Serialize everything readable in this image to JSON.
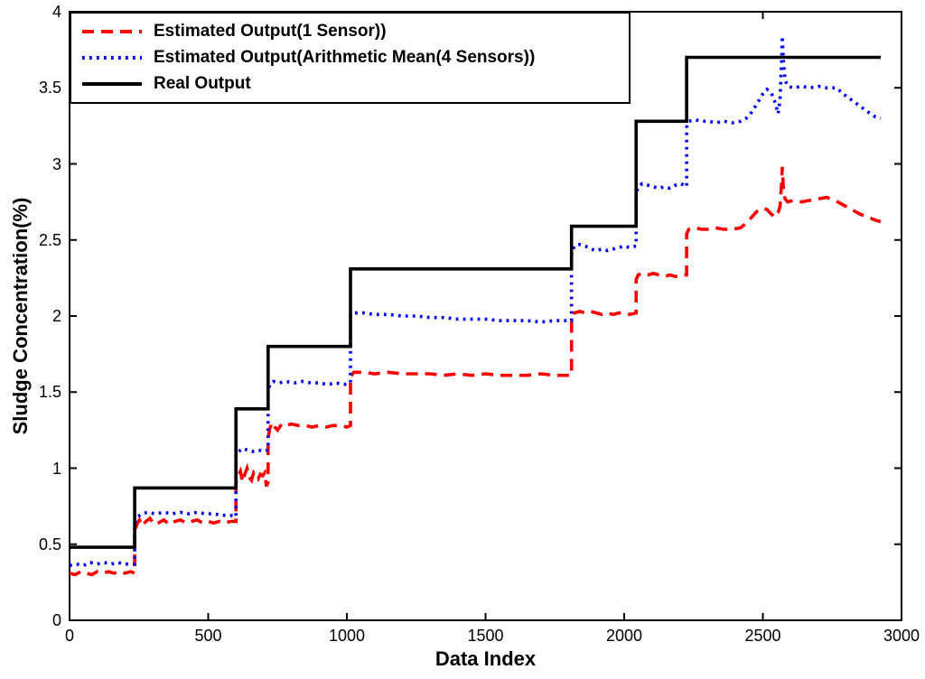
{
  "figure": {
    "background": "#ffffff",
    "axis_color": "#000000"
  },
  "chart_data": {
    "type": "line",
    "title": "",
    "xlabel": "Data Index",
    "ylabel": "Sludge Concentration(%)",
    "xlim": [
      0,
      3000
    ],
    "ylim": [
      0,
      4
    ],
    "grid": false,
    "legend_position": "top-left",
    "xticks": [
      0,
      500,
      1000,
      1500,
      2000,
      2500,
      3000
    ],
    "xtick_labels": [
      "0",
      "500",
      "1000",
      "1500",
      "2000",
      "2500",
      "3000"
    ],
    "yticks": [
      0,
      0.5,
      1,
      1.5,
      2,
      2.5,
      3,
      3.5,
      4
    ],
    "ytick_labels": [
      "0",
      "0.5",
      "1",
      "1.5",
      "2",
      "2.5",
      "3",
      "3.5",
      "4"
    ],
    "series": [
      {
        "name": "Estimated Output(1 Sensor))",
        "color": "#ff0000",
        "style": "dashed",
        "points": [
          [
            0,
            0.31
          ],
          [
            20,
            0.3
          ],
          [
            40,
            0.32
          ],
          [
            60,
            0.31
          ],
          [
            80,
            0.3
          ],
          [
            100,
            0.32
          ],
          [
            120,
            0.31
          ],
          [
            140,
            0.32
          ],
          [
            160,
            0.31
          ],
          [
            180,
            0.32
          ],
          [
            200,
            0.31
          ],
          [
            220,
            0.32
          ],
          [
            235,
            0.31
          ],
          [
            235,
            0.58
          ],
          [
            243,
            0.63
          ],
          [
            252,
            0.66
          ],
          [
            262,
            0.62
          ],
          [
            275,
            0.65
          ],
          [
            290,
            0.67
          ],
          [
            305,
            0.63
          ],
          [
            320,
            0.64
          ],
          [
            340,
            0.66
          ],
          [
            360,
            0.63
          ],
          [
            380,
            0.65
          ],
          [
            400,
            0.66
          ],
          [
            420,
            0.64
          ],
          [
            440,
            0.65
          ],
          [
            460,
            0.66
          ],
          [
            480,
            0.64
          ],
          [
            500,
            0.65
          ],
          [
            520,
            0.64
          ],
          [
            540,
            0.65
          ],
          [
            560,
            0.64
          ],
          [
            580,
            0.65
          ],
          [
            600,
            0.65
          ],
          [
            600,
            0.9
          ],
          [
            608,
            0.95
          ],
          [
            616,
            0.98
          ],
          [
            624,
            0.91
          ],
          [
            632,
            0.96
          ],
          [
            640,
            1.0
          ],
          [
            648,
            0.94
          ],
          [
            656,
            0.92
          ],
          [
            664,
            0.97
          ],
          [
            672,
            0.95
          ],
          [
            680,
            0.93
          ],
          [
            688,
            0.96
          ],
          [
            696,
            0.95
          ],
          [
            704,
            0.97
          ],
          [
            710,
            0.88
          ],
          [
            716,
            0.91
          ],
          [
            716,
            1.2
          ],
          [
            722,
            1.26
          ],
          [
            730,
            1.3
          ],
          [
            740,
            1.27
          ],
          [
            750,
            1.25
          ],
          [
            765,
            1.29
          ],
          [
            780,
            1.28
          ],
          [
            800,
            1.29
          ],
          [
            825,
            1.28
          ],
          [
            850,
            1.28
          ],
          [
            875,
            1.27
          ],
          [
            900,
            1.28
          ],
          [
            925,
            1.27
          ],
          [
            950,
            1.28
          ],
          [
            975,
            1.28
          ],
          [
            1000,
            1.27
          ],
          [
            1013,
            1.28
          ],
          [
            1013,
            1.6
          ],
          [
            1025,
            1.63
          ],
          [
            1060,
            1.63
          ],
          [
            1100,
            1.62
          ],
          [
            1150,
            1.63
          ],
          [
            1200,
            1.62
          ],
          [
            1250,
            1.62
          ],
          [
            1300,
            1.62
          ],
          [
            1350,
            1.61
          ],
          [
            1400,
            1.62
          ],
          [
            1450,
            1.61
          ],
          [
            1500,
            1.62
          ],
          [
            1550,
            1.61
          ],
          [
            1600,
            1.61
          ],
          [
            1650,
            1.61
          ],
          [
            1700,
            1.62
          ],
          [
            1750,
            1.61
          ],
          [
            1810,
            1.61
          ],
          [
            1810,
            1.98
          ],
          [
            1820,
            2.02
          ],
          [
            1840,
            2.03
          ],
          [
            1860,
            2.02
          ],
          [
            1880,
            2.03
          ],
          [
            1900,
            2.02
          ],
          [
            1920,
            2.01
          ],
          [
            1940,
            2.02
          ],
          [
            1960,
            2.01
          ],
          [
            1980,
            2.02
          ],
          [
            2000,
            2.02
          ],
          [
            2020,
            2.01
          ],
          [
            2043,
            2.02
          ],
          [
            2043,
            2.24
          ],
          [
            2050,
            2.27
          ],
          [
            2065,
            2.28
          ],
          [
            2085,
            2.27
          ],
          [
            2105,
            2.28
          ],
          [
            2125,
            2.27
          ],
          [
            2145,
            2.26
          ],
          [
            2165,
            2.27
          ],
          [
            2185,
            2.26
          ],
          [
            2205,
            2.27
          ],
          [
            2225,
            2.27
          ],
          [
            2225,
            2.54
          ],
          [
            2233,
            2.57
          ],
          [
            2255,
            2.58
          ],
          [
            2280,
            2.57
          ],
          [
            2305,
            2.57
          ],
          [
            2330,
            2.58
          ],
          [
            2360,
            2.57
          ],
          [
            2390,
            2.57
          ],
          [
            2420,
            2.58
          ],
          [
            2440,
            2.61
          ],
          [
            2460,
            2.65
          ],
          [
            2480,
            2.69
          ],
          [
            2500,
            2.71
          ],
          [
            2515,
            2.7
          ],
          [
            2530,
            2.67
          ],
          [
            2545,
            2.65
          ],
          [
            2555,
            2.68
          ],
          [
            2562,
            2.72
          ],
          [
            2567,
            2.86
          ],
          [
            2570,
            2.98
          ],
          [
            2574,
            2.84
          ],
          [
            2580,
            2.77
          ],
          [
            2590,
            2.75
          ],
          [
            2610,
            2.76
          ],
          [
            2640,
            2.75
          ],
          [
            2670,
            2.76
          ],
          [
            2700,
            2.77
          ],
          [
            2730,
            2.78
          ],
          [
            2760,
            2.76
          ],
          [
            2790,
            2.73
          ],
          [
            2820,
            2.7
          ],
          [
            2850,
            2.67
          ],
          [
            2880,
            2.65
          ],
          [
            2905,
            2.63
          ],
          [
            2925,
            2.62
          ]
        ]
      },
      {
        "name": "Estimated Output(Arithmetic Mean(4 Sensors))",
        "color": "#0000ff",
        "style": "dotted",
        "points": [
          [
            0,
            0.36
          ],
          [
            25,
            0.37
          ],
          [
            50,
            0.36
          ],
          [
            75,
            0.38
          ],
          [
            100,
            0.37
          ],
          [
            125,
            0.38
          ],
          [
            150,
            0.37
          ],
          [
            175,
            0.38
          ],
          [
            200,
            0.37
          ],
          [
            235,
            0.37
          ],
          [
            235,
            0.64
          ],
          [
            245,
            0.68
          ],
          [
            260,
            0.7
          ],
          [
            280,
            0.71
          ],
          [
            310,
            0.7
          ],
          [
            340,
            0.71
          ],
          [
            370,
            0.7
          ],
          [
            400,
            0.71
          ],
          [
            430,
            0.7
          ],
          [
            460,
            0.71
          ],
          [
            490,
            0.7
          ],
          [
            520,
            0.7
          ],
          [
            550,
            0.69
          ],
          [
            580,
            0.69
          ],
          [
            600,
            0.68
          ],
          [
            600,
            1.08
          ],
          [
            610,
            1.11
          ],
          [
            625,
            1.13
          ],
          [
            640,
            1.12
          ],
          [
            660,
            1.11
          ],
          [
            680,
            1.12
          ],
          [
            700,
            1.11
          ],
          [
            716,
            1.12
          ],
          [
            716,
            1.5
          ],
          [
            722,
            1.55
          ],
          [
            735,
            1.57
          ],
          [
            755,
            1.56
          ],
          [
            780,
            1.57
          ],
          [
            810,
            1.56
          ],
          [
            840,
            1.57
          ],
          [
            870,
            1.56
          ],
          [
            900,
            1.56
          ],
          [
            930,
            1.55
          ],
          [
            960,
            1.56
          ],
          [
            990,
            1.55
          ],
          [
            1013,
            1.56
          ],
          [
            1013,
            2.0
          ],
          [
            1025,
            2.02
          ],
          [
            1060,
            2.02
          ],
          [
            1100,
            2.01
          ],
          [
            1150,
            2.01
          ],
          [
            1200,
            2.0
          ],
          [
            1250,
            2.0
          ],
          [
            1300,
            1.99
          ],
          [
            1350,
            1.99
          ],
          [
            1400,
            1.98
          ],
          [
            1450,
            1.98
          ],
          [
            1500,
            1.98
          ],
          [
            1550,
            1.97
          ],
          [
            1600,
            1.97
          ],
          [
            1650,
            1.97
          ],
          [
            1700,
            1.96
          ],
          [
            1750,
            1.97
          ],
          [
            1810,
            1.97
          ],
          [
            1810,
            2.4
          ],
          [
            1820,
            2.46
          ],
          [
            1840,
            2.47
          ],
          [
            1860,
            2.46
          ],
          [
            1880,
            2.44
          ],
          [
            1900,
            2.43
          ],
          [
            1920,
            2.44
          ],
          [
            1940,
            2.43
          ],
          [
            1960,
            2.44
          ],
          [
            1980,
            2.45
          ],
          [
            2000,
            2.46
          ],
          [
            2020,
            2.45
          ],
          [
            2043,
            2.46
          ],
          [
            2043,
            2.8
          ],
          [
            2050,
            2.85
          ],
          [
            2065,
            2.87
          ],
          [
            2085,
            2.86
          ],
          [
            2105,
            2.85
          ],
          [
            2125,
            2.84
          ],
          [
            2145,
            2.85
          ],
          [
            2165,
            2.84
          ],
          [
            2185,
            2.86
          ],
          [
            2205,
            2.87
          ],
          [
            2225,
            2.85
          ],
          [
            2225,
            3.24
          ],
          [
            2233,
            3.28
          ],
          [
            2255,
            3.29
          ],
          [
            2280,
            3.28
          ],
          [
            2305,
            3.28
          ],
          [
            2330,
            3.27
          ],
          [
            2360,
            3.28
          ],
          [
            2390,
            3.27
          ],
          [
            2420,
            3.28
          ],
          [
            2440,
            3.3
          ],
          [
            2460,
            3.34
          ],
          [
            2480,
            3.4
          ],
          [
            2500,
            3.46
          ],
          [
            2515,
            3.49
          ],
          [
            2530,
            3.47
          ],
          [
            2545,
            3.4
          ],
          [
            2555,
            3.33
          ],
          [
            2562,
            3.42
          ],
          [
            2567,
            3.65
          ],
          [
            2570,
            3.84
          ],
          [
            2574,
            3.68
          ],
          [
            2580,
            3.55
          ],
          [
            2590,
            3.51
          ],
          [
            2610,
            3.5
          ],
          [
            2640,
            3.51
          ],
          [
            2670,
            3.5
          ],
          [
            2700,
            3.51
          ],
          [
            2730,
            3.5
          ],
          [
            2765,
            3.5
          ],
          [
            2790,
            3.46
          ],
          [
            2820,
            3.42
          ],
          [
            2850,
            3.38
          ],
          [
            2880,
            3.34
          ],
          [
            2905,
            3.31
          ],
          [
            2925,
            3.3
          ]
        ]
      },
      {
        "name": "Real Output",
        "color": "#000000",
        "style": "solid",
        "points": [
          [
            0,
            0.48
          ],
          [
            235,
            0.48
          ],
          [
            235,
            0.87
          ],
          [
            600,
            0.87
          ],
          [
            600,
            1.39
          ],
          [
            716,
            1.39
          ],
          [
            716,
            1.8
          ],
          [
            1013,
            1.8
          ],
          [
            1013,
            2.31
          ],
          [
            1810,
            2.31
          ],
          [
            1810,
            2.59
          ],
          [
            2043,
            2.59
          ],
          [
            2043,
            3.28
          ],
          [
            2225,
            3.28
          ],
          [
            2225,
            3.7
          ],
          [
            2925,
            3.7
          ]
        ]
      }
    ],
    "legend_order": [
      0,
      1,
      2
    ]
  }
}
